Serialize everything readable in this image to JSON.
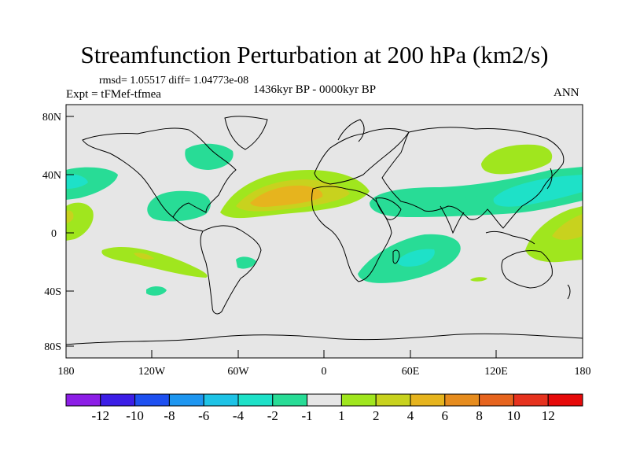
{
  "title": "Streamfunction Perturbation at 200 hPa (km2/s)",
  "stats": "rmsd= 1.05517 diff= 1.04773e-08",
  "experiment": "Expt = tFMef-tfmea",
  "period": "1436kyr BP - 0000kyr BP",
  "season": "ANN",
  "lat_ticks": [
    "80N",
    "40N",
    "0",
    "40S",
    "80S"
  ],
  "lon_ticks": [
    "180",
    "120W",
    "60W",
    "0",
    "60E",
    "120E",
    "180"
  ],
  "colorbar": {
    "labels": [
      "-12",
      "-10",
      "-8",
      "-6",
      "-4",
      "-2",
      "-1",
      "1",
      "2",
      "4",
      "6",
      "8",
      "10",
      "12"
    ],
    "colors": [
      "#8c1ee6",
      "#3c1ee6",
      "#1e50f0",
      "#1e96f0",
      "#1ec3e6",
      "#1ee1c8",
      "#28dc96",
      "#e6e6e6",
      "#a0e61e",
      "#c8d21e",
      "#e6b41e",
      "#e68c1e",
      "#e6641e",
      "#e6321e",
      "#e60a0a"
    ]
  }
}
